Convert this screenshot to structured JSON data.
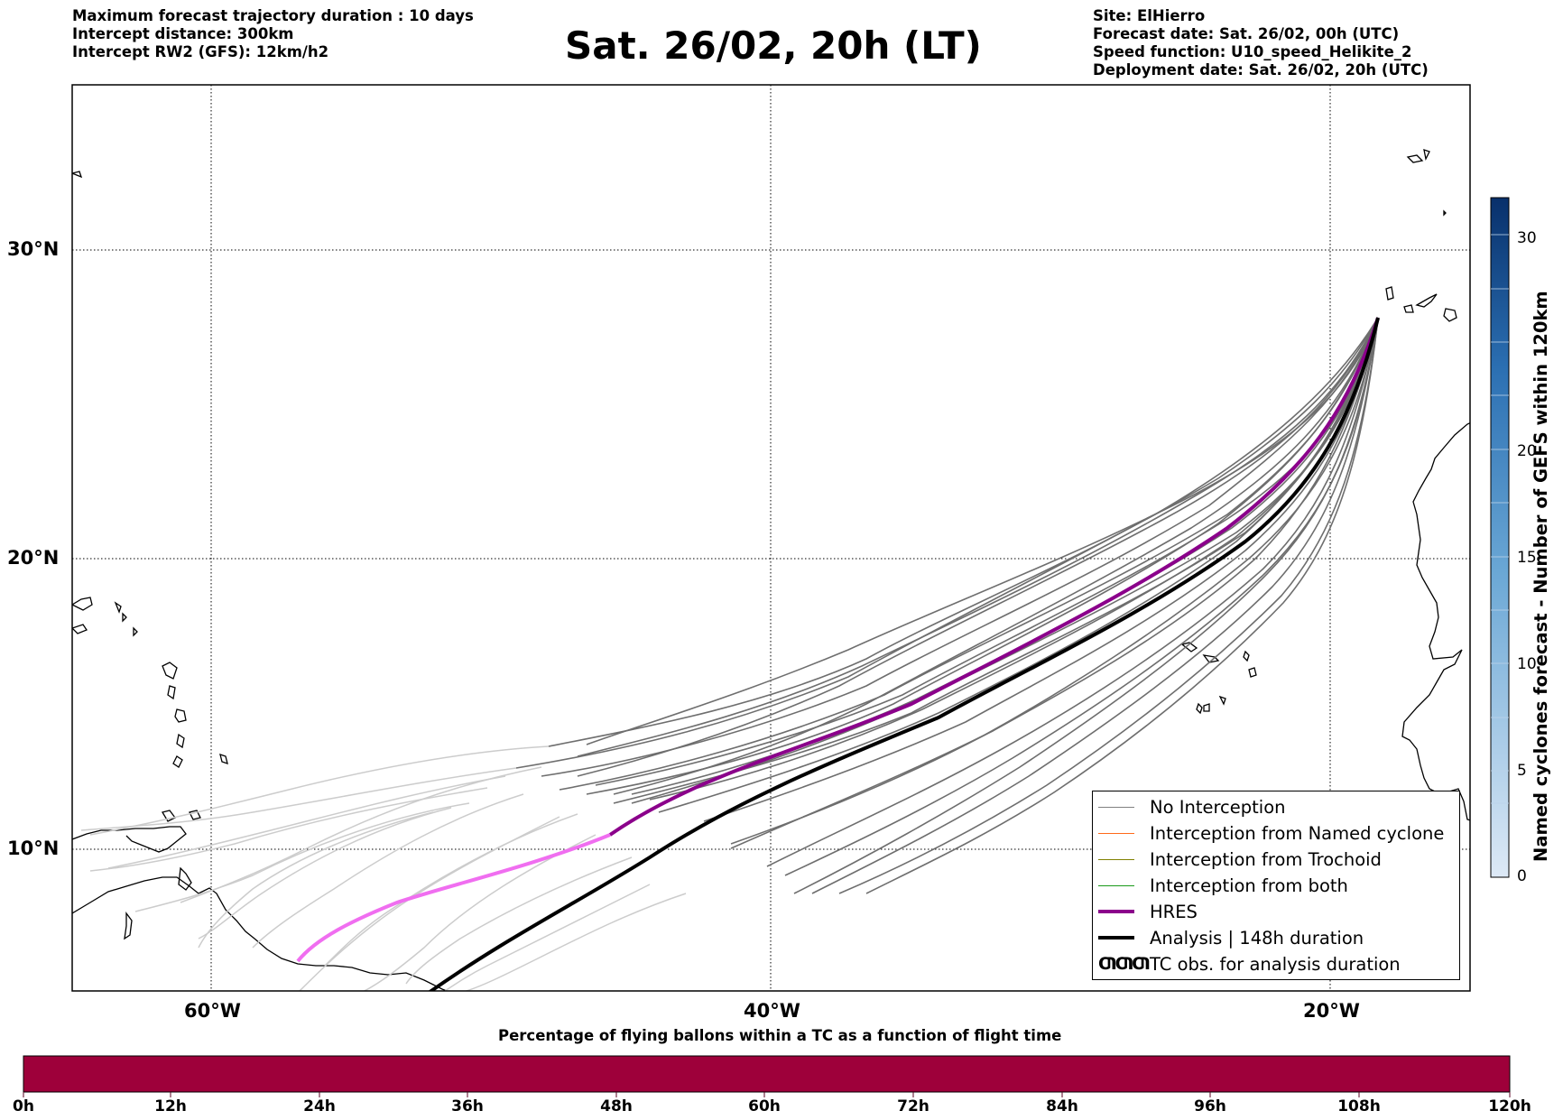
{
  "header_left": [
    "Maximum forecast trajectory duration : 10 days",
    "Intercept distance: 300km",
    "Intercept RW2 (GFS):  12km/h2"
  ],
  "header_right": [
    "Site: ElHierro",
    "Forecast date: Sat. 26/02, 00h (UTC)",
    "Speed function: U10_speed_Helikite_2",
    "Deployment date: Sat. 26/02, 20h (UTC)"
  ],
  "title": "Sat. 26/02, 20h (LT)",
  "map": {
    "lon_range": [
      -65,
      -15
    ],
    "lat_range": [
      5.4,
      34.7
    ],
    "lat_ticks": [
      "30°N",
      "20°N",
      "10°N"
    ],
    "lon_ticks": [
      "60°W",
      "40°W",
      "20°W"
    ],
    "grid": "dotted"
  },
  "legend": {
    "items": [
      {
        "label": "No Interception",
        "color": "#808080"
      },
      {
        "label": "Interception from Named cyclone",
        "color": "#ff6a1a"
      },
      {
        "label": "Interception from Trochoid",
        "color": "#808000"
      },
      {
        "label": "Interception from both",
        "color": "#1a9a1a"
      },
      {
        "label": "HRES",
        "color": "#8b008b"
      },
      {
        "label": "Analysis | 148h duration",
        "color": "#000000"
      },
      {
        "label": "TC obs. for analysis duration",
        "symbol": "ƢƢƢ"
      }
    ]
  },
  "colorbar_right": {
    "label": "Named cyclones forecast - Number of GEFS within 120km",
    "ticks": [
      "0",
      "5",
      "10",
      "15",
      "20",
      "30"
    ],
    "color_light": "#dde9f6",
    "color_dark": "#08306b"
  },
  "colorbar_bottom": {
    "label": "Percentage of flying ballons within a TC as a function of flight time",
    "ticks": [
      "0h",
      "12h",
      "24h",
      "36h",
      "48h",
      "60h",
      "72h",
      "84h",
      "96h",
      "108h",
      "120h"
    ],
    "color": "#9e003a"
  },
  "colors": {
    "hres": "#8b008b",
    "hres_faded": "#f06ef0",
    "analysis": "#000000",
    "ensemble": "#707070",
    "ensemble_faded": "#cccccc"
  }
}
